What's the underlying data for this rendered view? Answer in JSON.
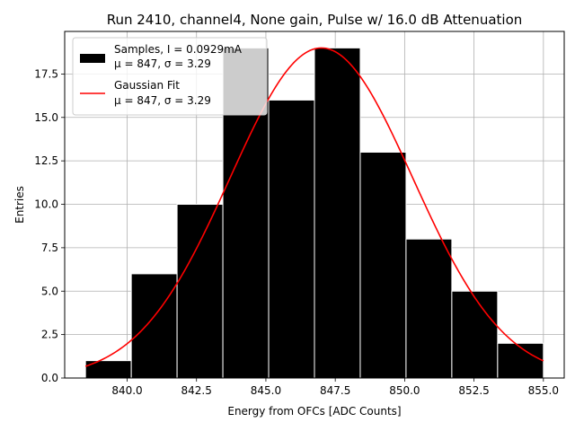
{
  "chart_data": {
    "type": "bar",
    "title": "Run 2410, channel4, None gain, Pulse w/ 16.0 dB Attenuation",
    "xlabel": "Energy from OFCs [ADC Counts]",
    "ylabel": "Entries",
    "xlim": [
      837.75,
      855.75
    ],
    "ylim": [
      0,
      19.95
    ],
    "grid": true,
    "legend_placement": "top-left",
    "xticks": [
      "840.0",
      "842.5",
      "845.0",
      "847.5",
      "850.0",
      "852.5",
      "855.0"
    ],
    "xtick_values": [
      840,
      842.5,
      845,
      847.5,
      850,
      852.5,
      855
    ],
    "yticks": [
      "0.0",
      "2.5",
      "5.0",
      "7.5",
      "10.0",
      "12.5",
      "15.0",
      "17.5"
    ],
    "ytick_values": [
      0,
      2.5,
      5,
      7.5,
      10,
      12.5,
      15,
      17.5
    ],
    "histogram": {
      "name": "Samples, I = 0.0929mA",
      "stats": "μ = 847, σ = 3.29",
      "bin_edges": [
        838.5,
        840.15,
        841.8,
        843.45,
        845.1,
        846.75,
        848.4,
        850.05,
        851.7,
        853.35,
        855.0
      ],
      "counts": [
        1,
        6,
        10,
        19,
        16,
        19,
        13,
        8,
        5,
        2
      ],
      "color": "#000000",
      "edge_color": "#ffffff"
    },
    "fit": {
      "name": "Gaussian Fit",
      "stats": "μ = 847, σ = 3.29",
      "mu": 847,
      "sigma": 3.29,
      "amplitude": 19,
      "x_range": [
        838.5,
        855.0
      ],
      "color": "#ff0000"
    }
  }
}
